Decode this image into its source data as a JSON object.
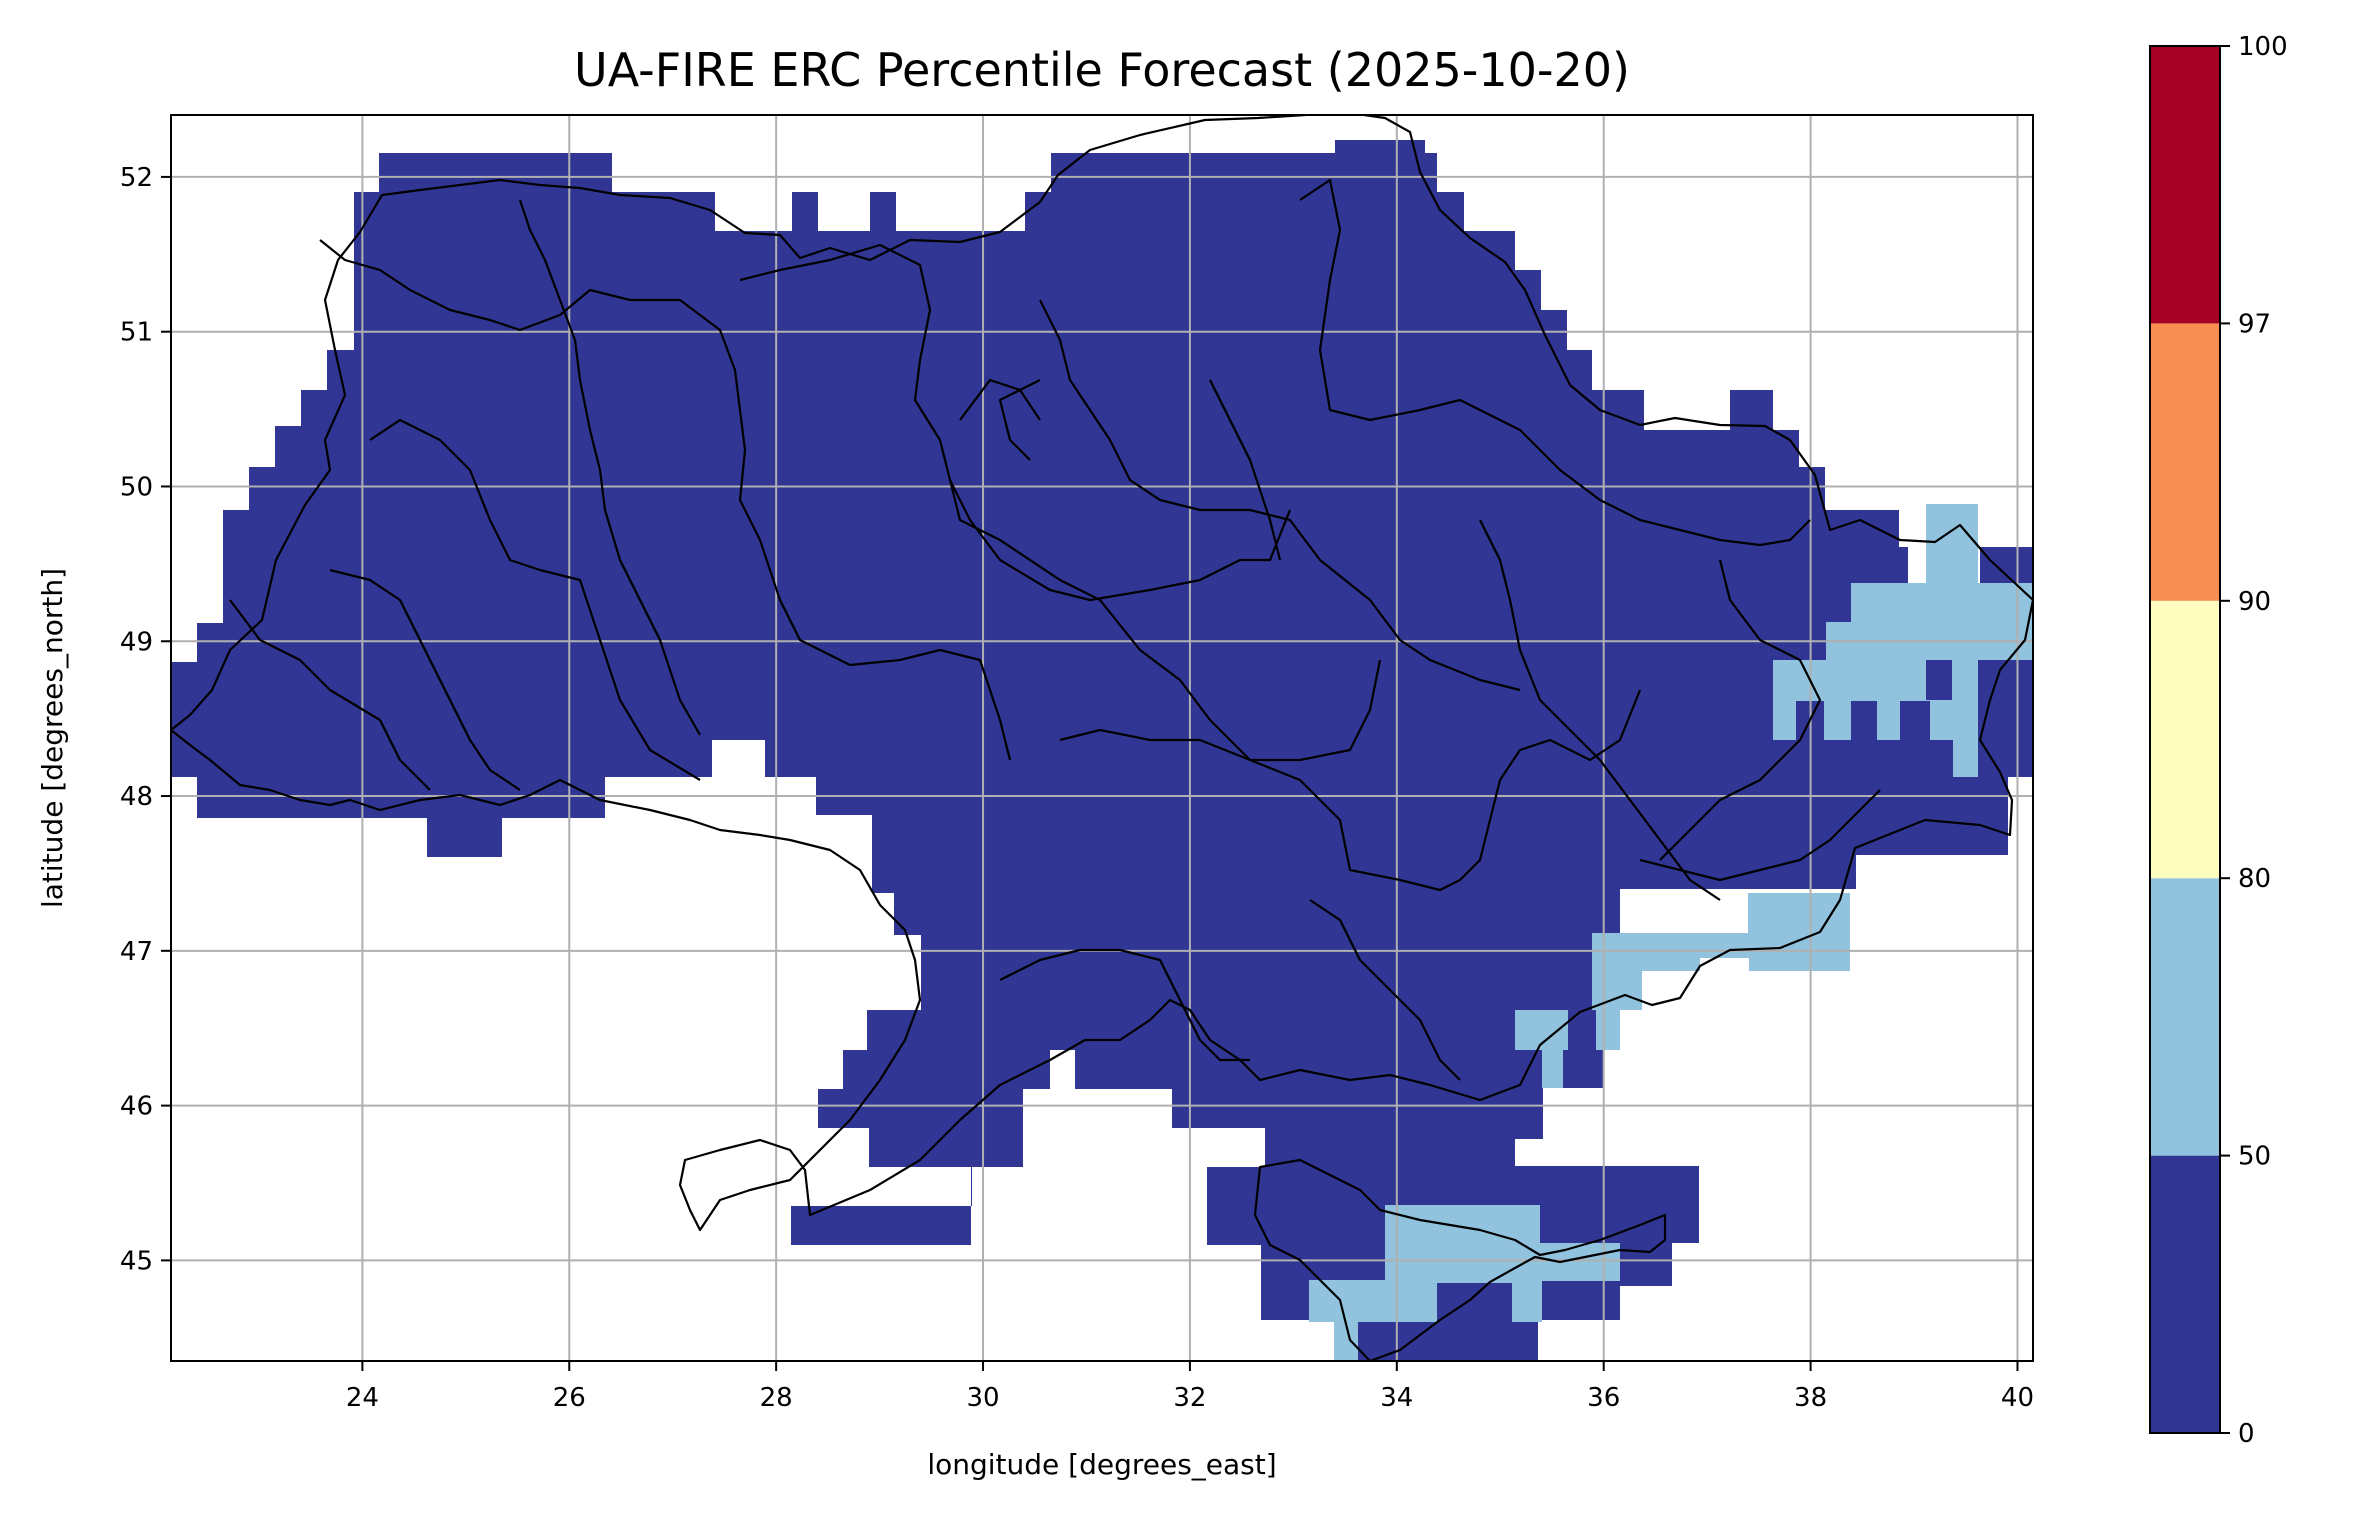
{
  "title": "UA-FIRE ERC Percentile Forecast (2025-10-20)",
  "xlabel": "longitude [degrees_east]",
  "ylabel": "latitude [degrees_north]",
  "x_ticks": [
    "24",
    "26",
    "28",
    "30",
    "32",
    "34",
    "36",
    "38",
    "40"
  ],
  "y_ticks": [
    "45",
    "46",
    "47",
    "48",
    "49",
    "50",
    "51",
    "52"
  ],
  "colorbar": {
    "ticks": [
      "0",
      "50",
      "80",
      "90",
      "97",
      "100"
    ],
    "bins": [
      {
        "from": 0,
        "to": 50,
        "color": "#313695"
      },
      {
        "from": 50,
        "to": 80,
        "color": "#91c3df"
      },
      {
        "from": 80,
        "to": 90,
        "color": "#fefcbf"
      },
      {
        "from": 90,
        "to": 97,
        "color": "#f88e51"
      },
      {
        "from": 97,
        "to": 100,
        "color": "#a50026"
      }
    ]
  },
  "chart_data": {
    "type": "heatmap",
    "title": "UA-FIRE ERC Percentile Forecast (2025-10-20)",
    "xlabel": "longitude [degrees_east]",
    "ylabel": "latitude [degrees_north]",
    "xlim": [
      22.15,
      40.15
    ],
    "ylim": [
      44.35,
      52.4
    ],
    "grid": true,
    "colorbar_placement": "right",
    "dominant_class": "0-50",
    "regions_50_80": [
      "Crimea southern coast (33.2-35.5 E, 44.4-45.2 N)",
      "Azov coast (35.4-38.4 E, 46.2-47.4 N)",
      "Eastern Luhansk/Donetsk (37.6-40.1 E, 48.2-49.9 N)"
    ]
  },
  "colors": {
    "dark": "#313695",
    "light": "#91c3df",
    "grid": "#b0b0b0",
    "border": "#000000"
  }
}
